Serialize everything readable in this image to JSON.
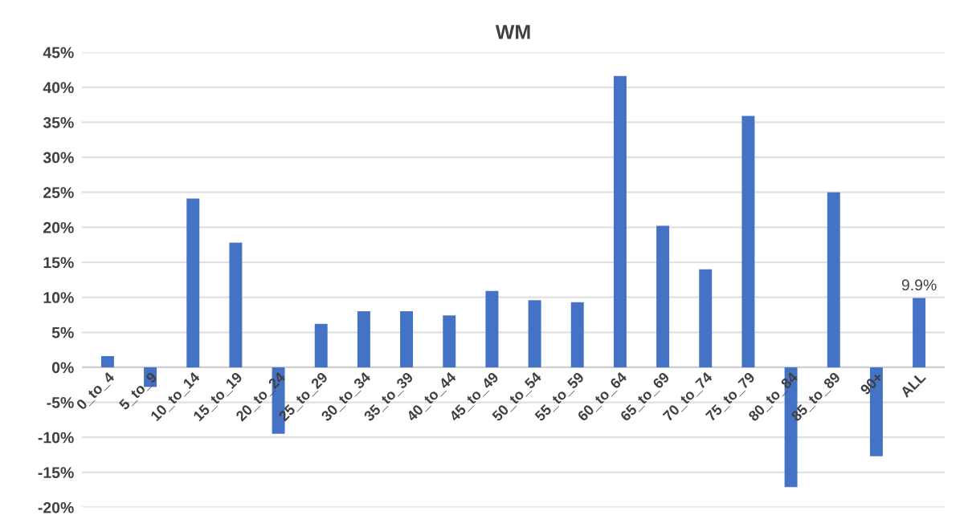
{
  "chart_data": {
    "type": "bar",
    "title": "WM",
    "categories": [
      "0_to_4",
      "5_to_9",
      "10_to_14",
      "15_to_19",
      "20_to_24",
      "25_to_29",
      "30_to_34",
      "35_to_39",
      "40_to_44",
      "45_to_49",
      "50_to_54",
      "55_to_59",
      "60_to_64",
      "65_to_69",
      "70_to_74",
      "75_to_79",
      "80_to_84",
      "85_to_89",
      "90+",
      "ALL"
    ],
    "values": [
      1.6,
      -2.8,
      24.1,
      17.8,
      -9.5,
      6.2,
      8.0,
      8.0,
      7.4,
      10.9,
      9.6,
      9.3,
      41.6,
      20.2,
      14.0,
      35.9,
      -17.1,
      25.0,
      -12.7,
      9.9
    ],
    "value_labels": [
      null,
      null,
      null,
      null,
      null,
      null,
      null,
      null,
      null,
      null,
      null,
      null,
      null,
      null,
      null,
      null,
      null,
      null,
      null,
      "9.9%"
    ],
    "color": "#4472c4",
    "ylim": [
      -20,
      45
    ],
    "yticks": [
      {
        "value": -20,
        "label": "-20%"
      },
      {
        "value": -15,
        "label": "-15%"
      },
      {
        "value": -10,
        "label": "-10%"
      },
      {
        "value": -5,
        "label": "-5%"
      },
      {
        "value": 0,
        "label": "0%"
      },
      {
        "value": 5,
        "label": "5%"
      },
      {
        "value": 10,
        "label": "10%"
      },
      {
        "value": 15,
        "label": "15%"
      },
      {
        "value": 20,
        "label": "20%"
      },
      {
        "value": 25,
        "label": "25%"
      },
      {
        "value": 30,
        "label": "30%"
      },
      {
        "value": 35,
        "label": "35%"
      },
      {
        "value": 40,
        "label": "40%"
      },
      {
        "value": 45,
        "label": "45%"
      }
    ],
    "grid": "y"
  }
}
